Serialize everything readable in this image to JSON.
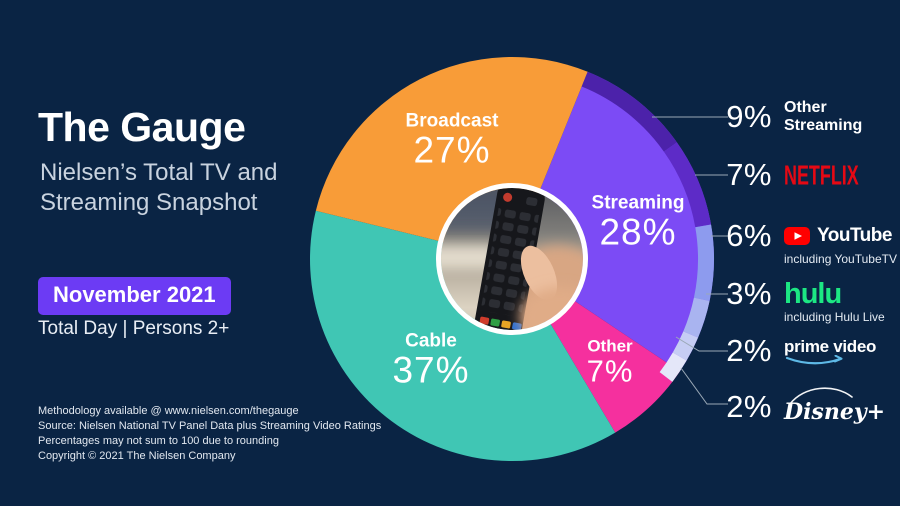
{
  "header": {
    "title": "The Gauge",
    "subtitle_line1": "Nielsen’s Total TV and",
    "subtitle_line2": "Streaming Snapshot",
    "badge": "November 2021",
    "period": "Total Day | Persons 2+"
  },
  "footnotes": [
    "Methodology available @ www.nielsen.com/thegauge",
    "Source: Nielsen National TV Panel Data plus Streaming Video Ratings",
    "Percentages may not sum to 100 due to rounding",
    "Copyright © 2021 The Nielsen Company"
  ],
  "chart_data": {
    "type": "pie",
    "title": "The Gauge — Nielsen's Total TV and Streaming Snapshot",
    "period": "November 2021",
    "center_image": "hand-holding-tv-remote",
    "start_angle_deg": 22,
    "normalized_total": 99,
    "slices": [
      {
        "label": "Broadcast",
        "pct": "27%",
        "value": 27,
        "color": "#f89c38"
      },
      {
        "label": "Streaming",
        "pct": "28%",
        "value": 28,
        "color": "#7c4bf5"
      },
      {
        "label": "Other",
        "pct": "7%",
        "value": 7,
        "color": "#f5309e"
      },
      {
        "label": "Cable",
        "pct": "37%",
        "value": 37,
        "color": "#40c6b4"
      }
    ],
    "streaming_breakdown": [
      {
        "label": "Other Streaming",
        "pct": "9%",
        "value": 9,
        "color": "#4c22aa"
      },
      {
        "label": "Netflix",
        "pct": "7%",
        "value": 7,
        "color": "#5d2bc7"
      },
      {
        "label": "YouTube",
        "pct": "6%",
        "value": 6,
        "color": "#8d9bee",
        "note": "including YouTubeTV"
      },
      {
        "label": "Hulu",
        "pct": "3%",
        "value": 3,
        "color": "#a9b4f0",
        "note": "including Hulu Live"
      },
      {
        "label": "Prime Video",
        "pct": "2%",
        "value": 2,
        "color": "#c6cdf4"
      },
      {
        "label": "Disney+",
        "pct": "2%",
        "value": 2,
        "color": "#e4e7f9"
      }
    ],
    "legend_position": "right",
    "colors": {
      "background": "#0a2444",
      "badge": "#6c3bf4",
      "leader_line": "#9aa8b6",
      "netflix_red": "#e50914",
      "hulu_green": "#1ce783",
      "youtube_red": "#ff0000",
      "prime_blue": "#5eb9e6"
    }
  }
}
